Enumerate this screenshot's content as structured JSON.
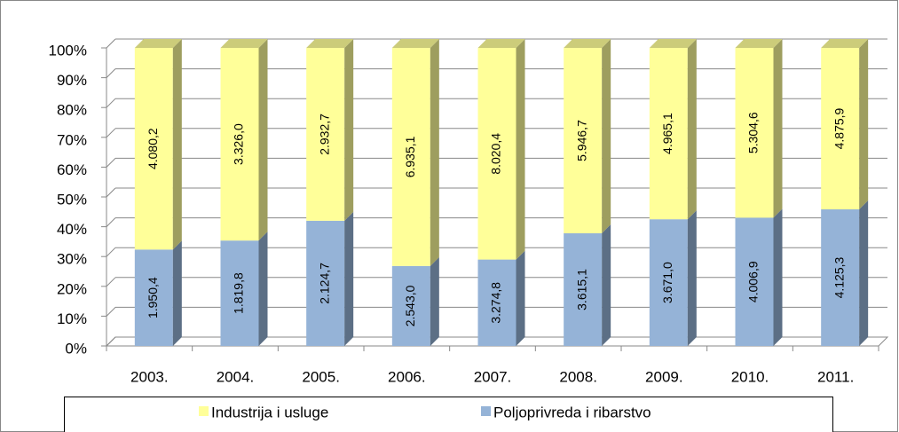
{
  "chart_data": {
    "type": "bar",
    "stacking": "percent",
    "categories": [
      "2003.",
      "2004.",
      "2005.",
      "2006.",
      "2007.",
      "2008.",
      "2009.",
      "2010.",
      "2011."
    ],
    "series": [
      {
        "name": "Poljoprivreda i ribarstvo",
        "color": "#95b3d7",
        "values": [
          1950.4,
          1819.8,
          2124.7,
          2543.0,
          3274.8,
          3615.1,
          3671.0,
          4006.9,
          4125.3
        ],
        "value_labels": [
          "1.950,4",
          "1.819,8",
          "2.124,7",
          "2.543,0",
          "3.274,8",
          "3.615,1",
          "3.671,0",
          "4.006,9",
          "4.125,3"
        ]
      },
      {
        "name": "Industrija i usluge",
        "color": "#ffff99",
        "values": [
          4080.2,
          3326.0,
          2932.7,
          6935.1,
          8020.4,
          5946.7,
          4965.1,
          5304.6,
          4875.9
        ],
        "value_labels": [
          "4.080,2",
          "3.326,0",
          "2.932,7",
          "6.935,1",
          "8.020,4",
          "5.946,7",
          "4.965,1",
          "5.304,6",
          "4.875,9"
        ]
      }
    ],
    "ylim": [
      0,
      100
    ],
    "yticks": [
      {
        "value": 0,
        "label": "0%"
      },
      {
        "value": 10,
        "label": "10%"
      },
      {
        "value": 20,
        "label": "20%"
      },
      {
        "value": 30,
        "label": "30%"
      },
      {
        "value": 40,
        "label": "40%"
      },
      {
        "value": 50,
        "label": "50%"
      },
      {
        "value": 60,
        "label": "60%"
      },
      {
        "value": 70,
        "label": "70%"
      },
      {
        "value": 80,
        "label": "80%"
      },
      {
        "value": 90,
        "label": "90%"
      },
      {
        "value": 100,
        "label": "100%"
      }
    ],
    "grid": true,
    "legend": "bottom"
  }
}
